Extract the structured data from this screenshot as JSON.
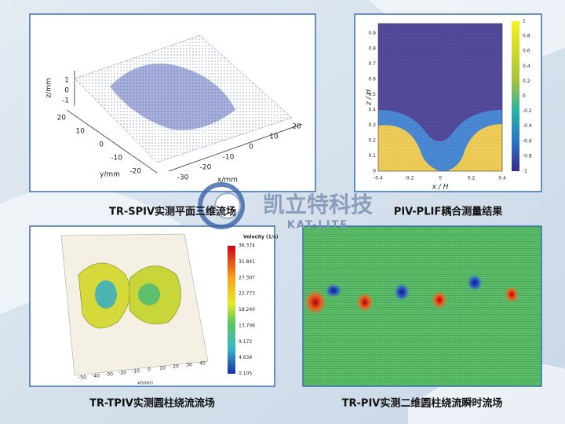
{
  "logo": {
    "name": "凯立特科技",
    "sub": "KAT-LITE"
  },
  "panels": [
    {
      "caption": "TR-SPIV实测平面三维流场",
      "z_label": "z/mm",
      "y_label": "y/mm",
      "x_label": "x/mm",
      "z_ticks": [
        "1",
        "0",
        "-1"
      ],
      "y_ticks": [
        "20",
        "10",
        "0",
        "-10",
        "-20"
      ],
      "x_ticks": [
        "-30",
        "-20",
        "-10",
        "0",
        "10",
        "20"
      ]
    },
    {
      "caption": "PIV-PLIF耦合测量结果",
      "y_label": "z / H",
      "x_label": "x / H",
      "y_ticks": [
        "0",
        "0.1",
        "0.2",
        "0.3",
        "0.4",
        "0.5",
        "0.6",
        "0.7",
        "0.8",
        "0.9"
      ],
      "x_ticks": [
        "-0.4",
        "-0.2",
        "0",
        "0.2",
        "0.4"
      ],
      "colorbar_ticks": [
        "1",
        "0.8",
        "0.6",
        "0.4",
        "0.2",
        "0",
        "-0.2",
        "-0.4",
        "-0.6",
        "-0.8",
        "-1"
      ]
    },
    {
      "caption": "TR-TPIV实测圆柱绕流流场",
      "colorbar_title": "Velocity (1/s)",
      "colorbar_ticks": [
        "36.374",
        "31.841",
        "27.307",
        "22.773",
        "18.240",
        "13.706",
        "9.172",
        "4.639",
        "0.105"
      ],
      "x_label": "x(mm)",
      "x_ticks": [
        "-50",
        "-40",
        "-30",
        "-20",
        "-10",
        "0",
        "10",
        "20",
        "30",
        "40"
      ]
    },
    {
      "caption": "TR-PIV实测二维圆柱绕流瞬时流场"
    }
  ]
}
